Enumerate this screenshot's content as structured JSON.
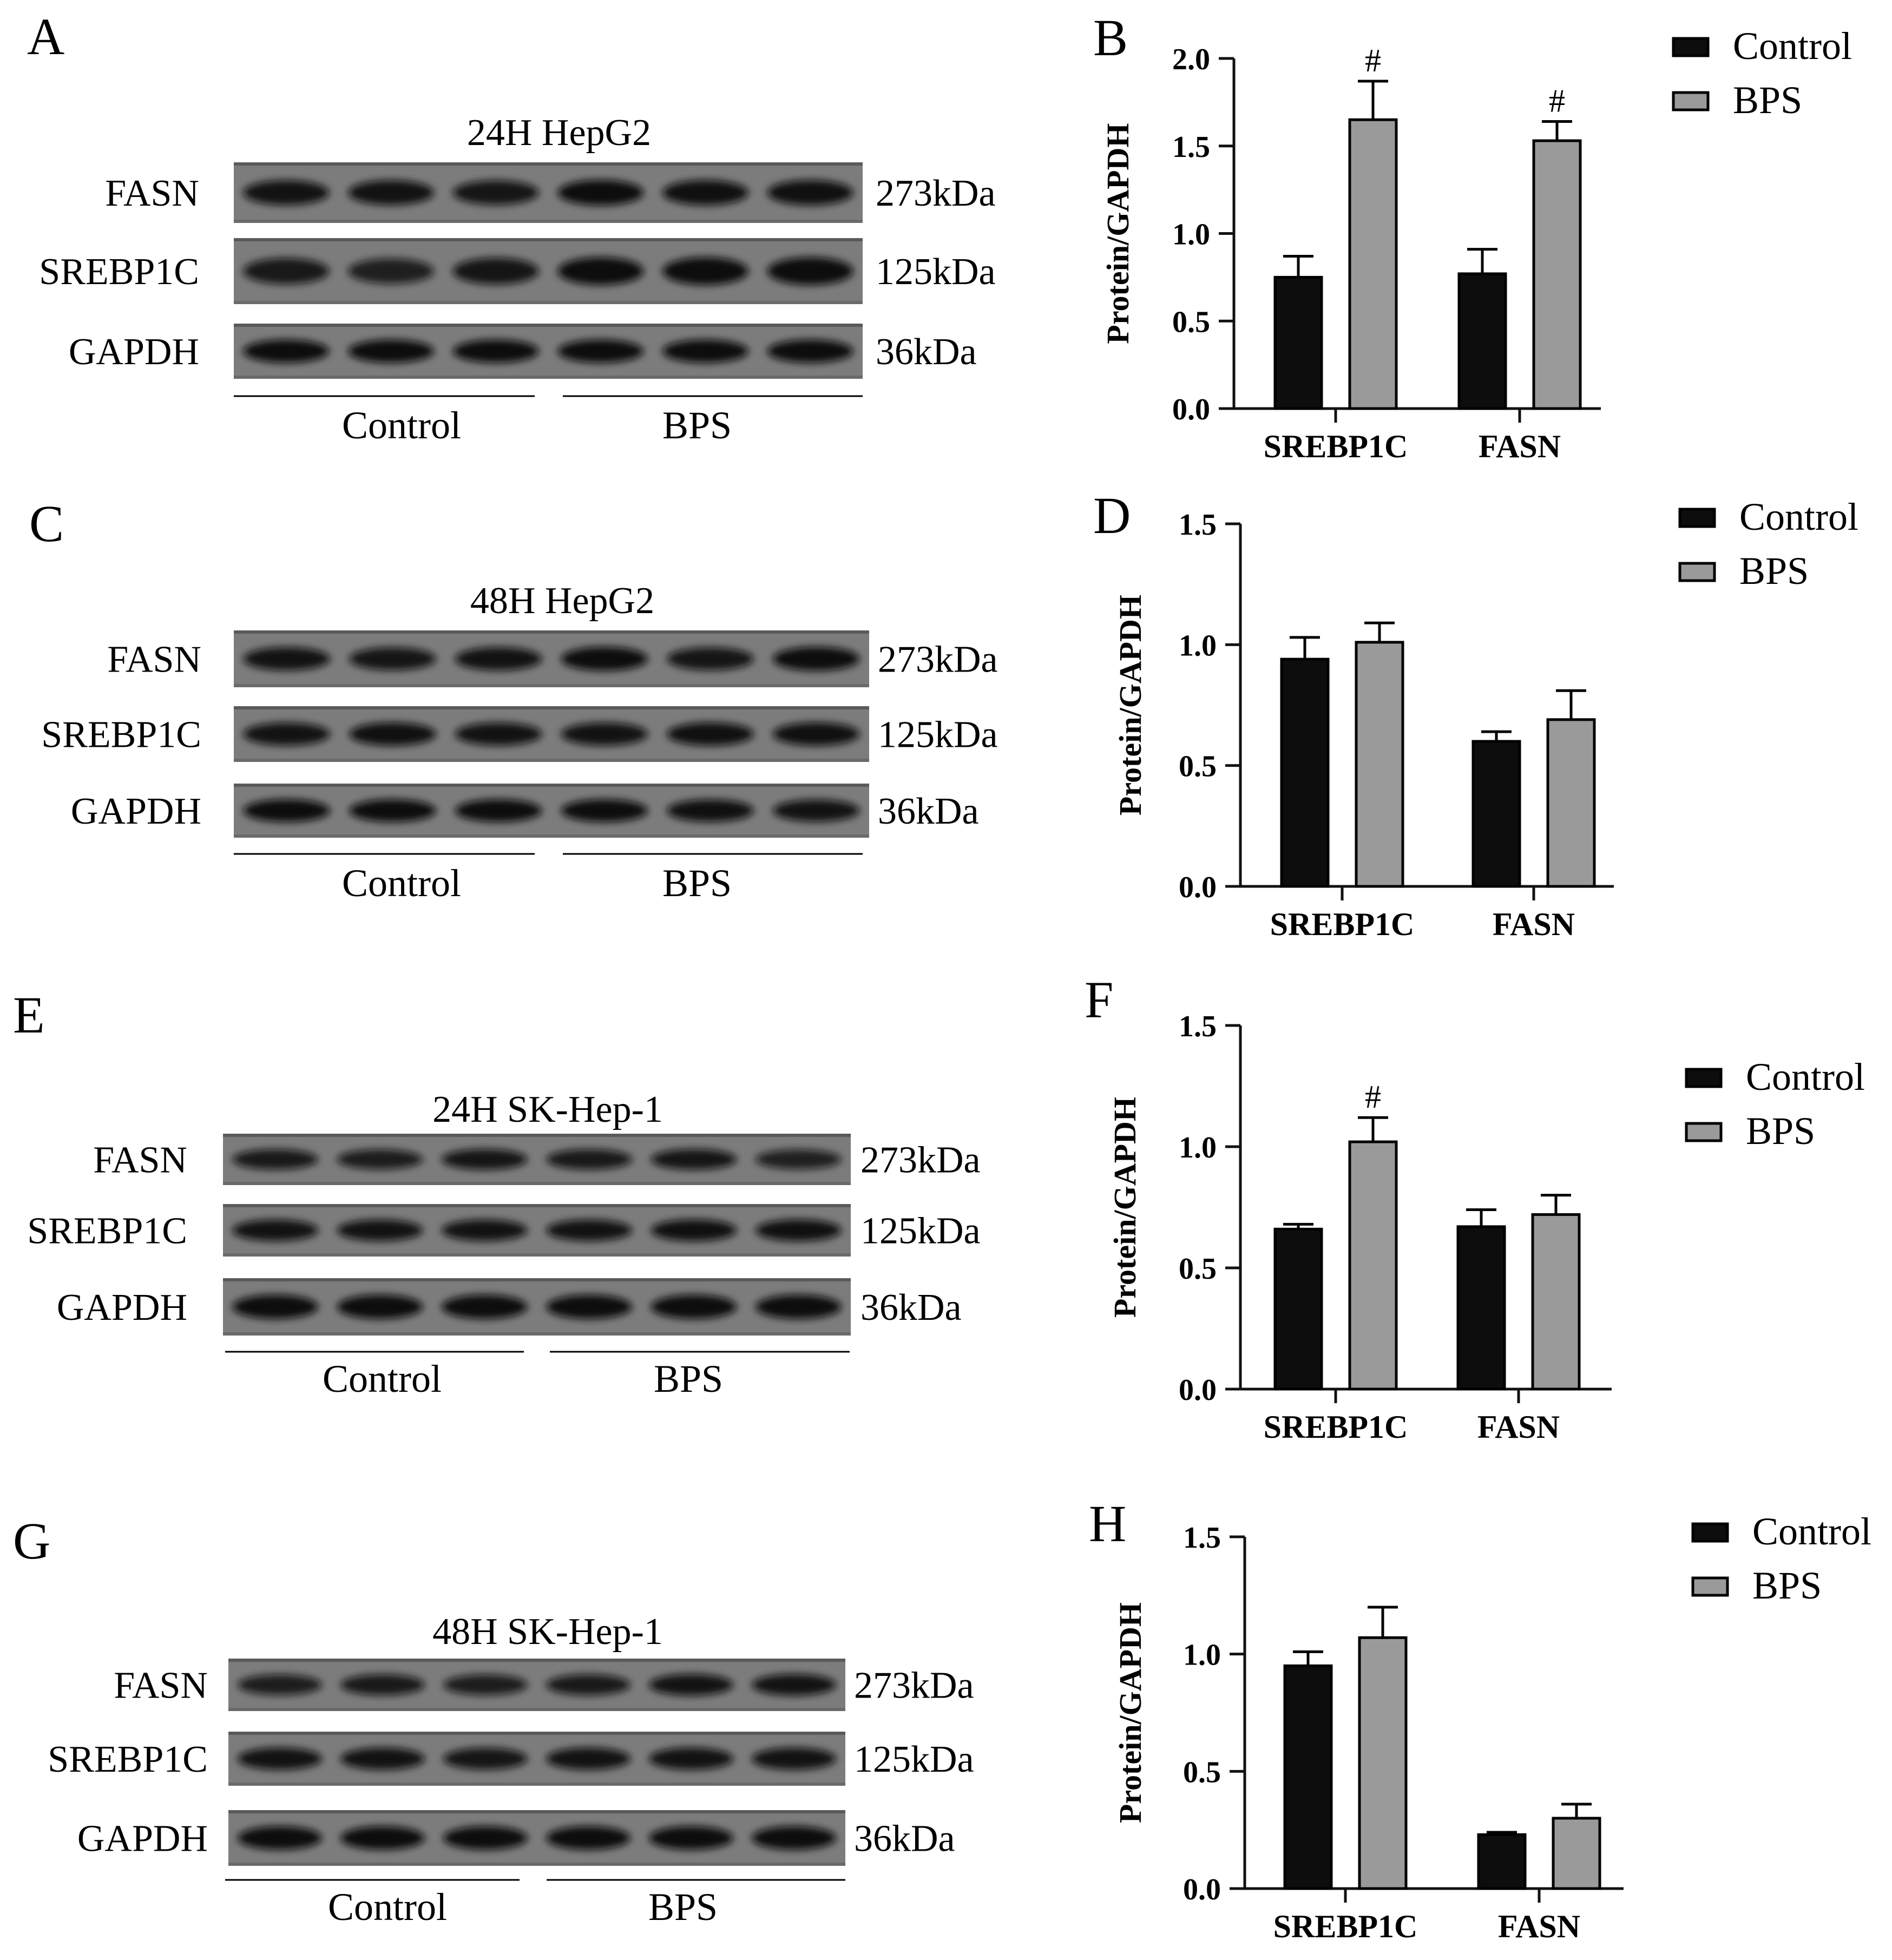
{
  "colors": {
    "control": "#0d0d0d",
    "bps": "#9a9a9a",
    "axis": "#111111",
    "blot_bg": "#7c7c7c",
    "band": "#101010"
  },
  "blots": [
    {
      "letter": "A",
      "title": "24H  HepG2",
      "rows": [
        {
          "label": "FASN",
          "kda": "273kDa",
          "intensity": [
            0.9,
            0.9,
            0.85,
            1.0,
            0.95,
            0.95
          ]
        },
        {
          "label": "SREBP1C",
          "kda": "125kDa",
          "intensity": [
            0.8,
            0.7,
            0.85,
            1.0,
            1.0,
            1.0
          ]
        },
        {
          "label": "GAPDH",
          "kda": "36kDa",
          "intensity": [
            1.0,
            1.0,
            1.0,
            1.0,
            1.0,
            1.0
          ]
        }
      ],
      "groups": [
        "Control",
        "BPS"
      ]
    },
    {
      "letter": "C",
      "title": "48H  HepG2",
      "rows": [
        {
          "label": "FASN",
          "kda": "273kDa",
          "intensity": [
            0.9,
            0.85,
            0.9,
            1.0,
            0.85,
            1.0
          ]
        },
        {
          "label": "SREBP1C",
          "kda": "125kDa",
          "intensity": [
            0.9,
            0.95,
            0.9,
            0.9,
            0.95,
            0.95
          ]
        },
        {
          "label": "GAPDH",
          "kda": "36kDa",
          "intensity": [
            1.0,
            1.0,
            1.0,
            1.0,
            0.95,
            0.9
          ]
        }
      ],
      "groups": [
        "Control",
        "BPS"
      ]
    },
    {
      "letter": "E",
      "title": "24H  SK-Hep-1",
      "rows": [
        {
          "label": "FASN",
          "kda": "273kDa",
          "intensity": [
            0.8,
            0.75,
            0.85,
            0.8,
            0.85,
            0.7
          ]
        },
        {
          "label": "SREBP1C",
          "kda": "125kDa",
          "intensity": [
            0.9,
            0.9,
            0.9,
            0.9,
            0.95,
            0.95
          ]
        },
        {
          "label": "GAPDH",
          "kda": "36kDa",
          "intensity": [
            1.0,
            1.0,
            1.0,
            1.0,
            1.0,
            1.0
          ]
        }
      ],
      "groups": [
        "Control",
        "BPS"
      ]
    },
    {
      "letter": "G",
      "title": "48H  SK-Hep-1",
      "rows": [
        {
          "label": "FASN",
          "kda": "273kDa",
          "intensity": [
            0.75,
            0.8,
            0.75,
            0.8,
            0.9,
            0.9
          ]
        },
        {
          "label": "SREBP1C",
          "kda": "125kDa",
          "intensity": [
            0.9,
            0.9,
            0.85,
            0.9,
            0.9,
            0.9
          ]
        },
        {
          "label": "GAPDH",
          "kda": "36kDa",
          "intensity": [
            1.0,
            1.0,
            1.0,
            1.0,
            1.0,
            1.0
          ]
        }
      ],
      "groups": [
        "Control",
        "BPS"
      ]
    }
  ],
  "chart_data": [
    {
      "letter": "B",
      "type": "bar",
      "categories": [
        "SREBP1C",
        "FASN"
      ],
      "series": [
        {
          "name": "Control",
          "values": [
            0.75,
            0.77
          ],
          "errors": [
            0.12,
            0.14
          ]
        },
        {
          "name": "BPS",
          "values": [
            1.65,
            1.53
          ],
          "errors": [
            0.22,
            0.11
          ]
        }
      ],
      "annotations": [
        {
          "category": "SREBP1C",
          "series": "BPS",
          "text": "#"
        },
        {
          "category": "FASN",
          "series": "BPS",
          "text": "#"
        }
      ],
      "ylabel": "Protein/GAPDH",
      "ylim": [
        0,
        2.0
      ],
      "yticks": [
        "0.0",
        "0.5",
        "1.0",
        "1.5",
        "2.0"
      ],
      "legend_position": "top-right"
    },
    {
      "letter": "D",
      "type": "bar",
      "categories": [
        "SREBP1C",
        "FASN"
      ],
      "series": [
        {
          "name": "Control",
          "values": [
            0.94,
            0.6
          ],
          "errors": [
            0.09,
            0.04
          ]
        },
        {
          "name": "BPS",
          "values": [
            1.01,
            0.69
          ],
          "errors": [
            0.08,
            0.12
          ]
        }
      ],
      "annotations": [],
      "ylabel": "Protein/GAPDH",
      "ylim": [
        0,
        1.5
      ],
      "yticks": [
        "0.0",
        "0.5",
        "1.0",
        "1.5"
      ],
      "legend_position": "top-right"
    },
    {
      "letter": "F",
      "type": "bar",
      "categories": [
        "SREBP1C",
        "FASN"
      ],
      "series": [
        {
          "name": "Control",
          "values": [
            0.66,
            0.67
          ],
          "errors": [
            0.02,
            0.07
          ]
        },
        {
          "name": "BPS",
          "values": [
            1.02,
            0.72
          ],
          "errors": [
            0.1,
            0.08
          ]
        }
      ],
      "annotations": [
        {
          "category": "SREBP1C",
          "series": "BPS",
          "text": "#"
        }
      ],
      "ylabel": "Protein/GAPDH",
      "ylim": [
        0,
        1.5
      ],
      "yticks": [
        "0.0",
        "0.5",
        "1.0",
        "1.5"
      ],
      "legend_position": "top-right"
    },
    {
      "letter": "H",
      "type": "bar",
      "categories": [
        "SREBP1C",
        "FASN"
      ],
      "series": [
        {
          "name": "Control",
          "values": [
            0.95,
            0.23
          ],
          "errors": [
            0.06,
            0.01
          ]
        },
        {
          "name": "BPS",
          "values": [
            1.07,
            0.3
          ],
          "errors": [
            0.13,
            0.06
          ]
        }
      ],
      "annotations": [],
      "ylabel": "Protein/GAPDH",
      "ylim": [
        0,
        1.5
      ],
      "yticks": [
        "0.0",
        "0.5",
        "1.0",
        "1.5"
      ],
      "legend_position": "top-right"
    }
  ]
}
